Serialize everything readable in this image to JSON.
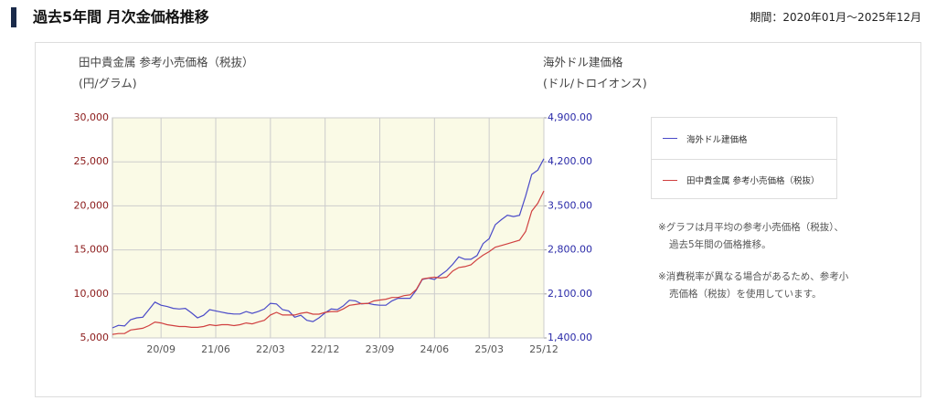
{
  "header": {
    "title": "過去5年間 月次金価格推移",
    "period": "期間：2020年01月～2025年12月"
  },
  "chart_data": {
    "type": "line",
    "ylabel": "田中貴金属 参考小売価格（税抜）",
    "ylabel_unit": "(円/グラム)",
    "y2label": "海外ドル建価格",
    "y2label_unit": "(ドル/トロイオンス)",
    "categories": [
      null,
      null,
      null,
      null,
      null,
      null,
      null,
      null,
      "20/09",
      null,
      null,
      null,
      null,
      null,
      null,
      null,
      null,
      "21/06",
      null,
      null,
      null,
      null,
      null,
      null,
      null,
      null,
      "22/03",
      null,
      null,
      null,
      null,
      null,
      null,
      null,
      null,
      "22/12",
      null,
      null,
      null,
      null,
      null,
      null,
      null,
      null,
      "23/09",
      null,
      null,
      null,
      null,
      null,
      null,
      null,
      null,
      "24/06",
      null,
      null,
      null,
      null,
      null,
      null,
      null,
      null,
      "25/03",
      null,
      null,
      null,
      null,
      null,
      null,
      null,
      null,
      "25/12"
    ],
    "ylim": [
      5000,
      30000
    ],
    "yticks": [
      {
        "value": 5000,
        "label": "5,000"
      },
      {
        "value": 10000,
        "label": "10,000"
      },
      {
        "value": 15000,
        "label": "15,000"
      },
      {
        "value": 20000,
        "label": "20,000"
      },
      {
        "value": 25000,
        "label": "25,000"
      },
      {
        "value": 30000,
        "label": "30,000"
      }
    ],
    "y2lim": [
      1400,
      4900
    ],
    "y2ticks": [
      {
        "value": 1400,
        "label": "1,400.00"
      },
      {
        "value": 2100,
        "label": "2,100.00"
      },
      {
        "value": 2800,
        "label": "2,800.00"
      },
      {
        "value": 3500,
        "label": "3,500.00"
      },
      {
        "value": 4200,
        "label": "4,200.00"
      },
      {
        "value": 4900,
        "label": "4,900.00"
      }
    ],
    "grid": true,
    "series": [
      {
        "name": "海外ドル建価格",
        "color": "#4a4ac8",
        "axis": "y2",
        "values": [
          1560,
          1600,
          1590,
          1690,
          1720,
          1730,
          1850,
          1970,
          1920,
          1900,
          1870,
          1860,
          1870,
          1800,
          1720,
          1760,
          1850,
          1830,
          1810,
          1790,
          1780,
          1780,
          1820,
          1790,
          1820,
          1860,
          1950,
          1940,
          1850,
          1830,
          1730,
          1760,
          1680,
          1660,
          1720,
          1800,
          1860,
          1850,
          1910,
          2000,
          1990,
          1940,
          1950,
          1930,
          1920,
          1920,
          1990,
          2030,
          2030,
          2030,
          2160,
          2330,
          2350,
          2330,
          2400,
          2470,
          2570,
          2690,
          2650,
          2650,
          2710,
          2900,
          2980,
          3200,
          3280,
          3350,
          3330,
          3350,
          3660,
          4000,
          4070,
          4250
        ]
      },
      {
        "name": "田中貴金属 参考小売価格（税抜）",
        "color": "#d04040",
        "values": [
          5400,
          5500,
          5500,
          5900,
          6000,
          6100,
          6400,
          6800,
          6700,
          6500,
          6400,
          6300,
          6300,
          6200,
          6200,
          6300,
          6500,
          6400,
          6500,
          6500,
          6400,
          6500,
          6700,
          6600,
          6800,
          7000,
          7600,
          7900,
          7600,
          7600,
          7600,
          7800,
          7900,
          7700,
          7700,
          7900,
          8000,
          8000,
          8300,
          8700,
          8800,
          8900,
          8900,
          9200,
          9300,
          9400,
          9600,
          9600,
          9800,
          9900,
          10500,
          11700,
          11800,
          11900,
          11800,
          11900,
          12600,
          13000,
          13100,
          13300,
          13900,
          14400,
          14800,
          15300,
          15500,
          15700,
          15900,
          16100,
          17100,
          19400,
          20300,
          21700
        ]
      }
    ],
    "notes": [
      [
        "※グラフは月平均の参考小売価格（税抜）、",
        "過去5年間の価格推移。"
      ],
      [
        "※消費税率が異なる場合があるため、参考小",
        "売価格（税抜）を使用しています。"
      ]
    ]
  }
}
